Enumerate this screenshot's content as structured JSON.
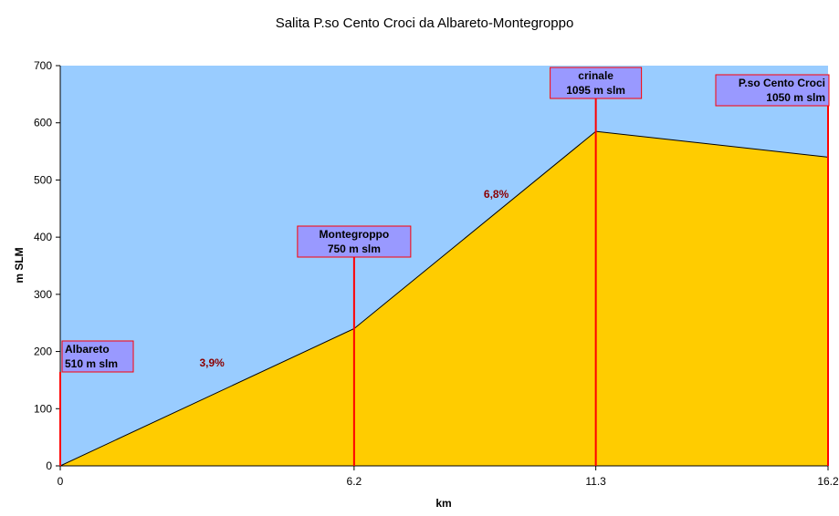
{
  "chart_data": {
    "type": "area",
    "title": "Salita P.so Cento Croci da Albareto-Montegroppo",
    "xlabel": "km",
    "ylabel": "m SLM",
    "ylim": [
      0,
      700
    ],
    "xlim": [
      0,
      16.2
    ],
    "grid": false,
    "x": [
      0,
      6.2,
      11.3,
      16.2
    ],
    "y": [
      0,
      240,
      585,
      540
    ],
    "x_tick_labels": [
      "0",
      "6.2",
      "11.3",
      "16.2"
    ],
    "y_ticks": [
      0,
      100,
      200,
      300,
      400,
      500,
      600,
      700
    ],
    "markers": [
      {
        "x": 0,
        "lines": [
          "Albareto",
          "510 m slm"
        ],
        "align": "left"
      },
      {
        "x": 6.2,
        "lines": [
          "Montegroppo",
          "750 m slm"
        ],
        "align": "center"
      },
      {
        "x": 11.3,
        "lines": [
          "crinale",
          "1095 m slm"
        ],
        "align": "center"
      },
      {
        "x": 16.2,
        "lines": [
          "P.so Cento Croci",
          "1050 m slm"
        ],
        "align": "right"
      }
    ],
    "gradients": [
      {
        "label": "3,9%",
        "x": 3.2,
        "y": 180
      },
      {
        "label": "6,8%",
        "x": 9.2,
        "y": 475
      }
    ],
    "colors": {
      "background": "#99ccff",
      "area": "#ffcc00",
      "marker_line": "#ff0000",
      "label_box": "#9999ff",
      "gradient_text": "#8b0000"
    }
  }
}
